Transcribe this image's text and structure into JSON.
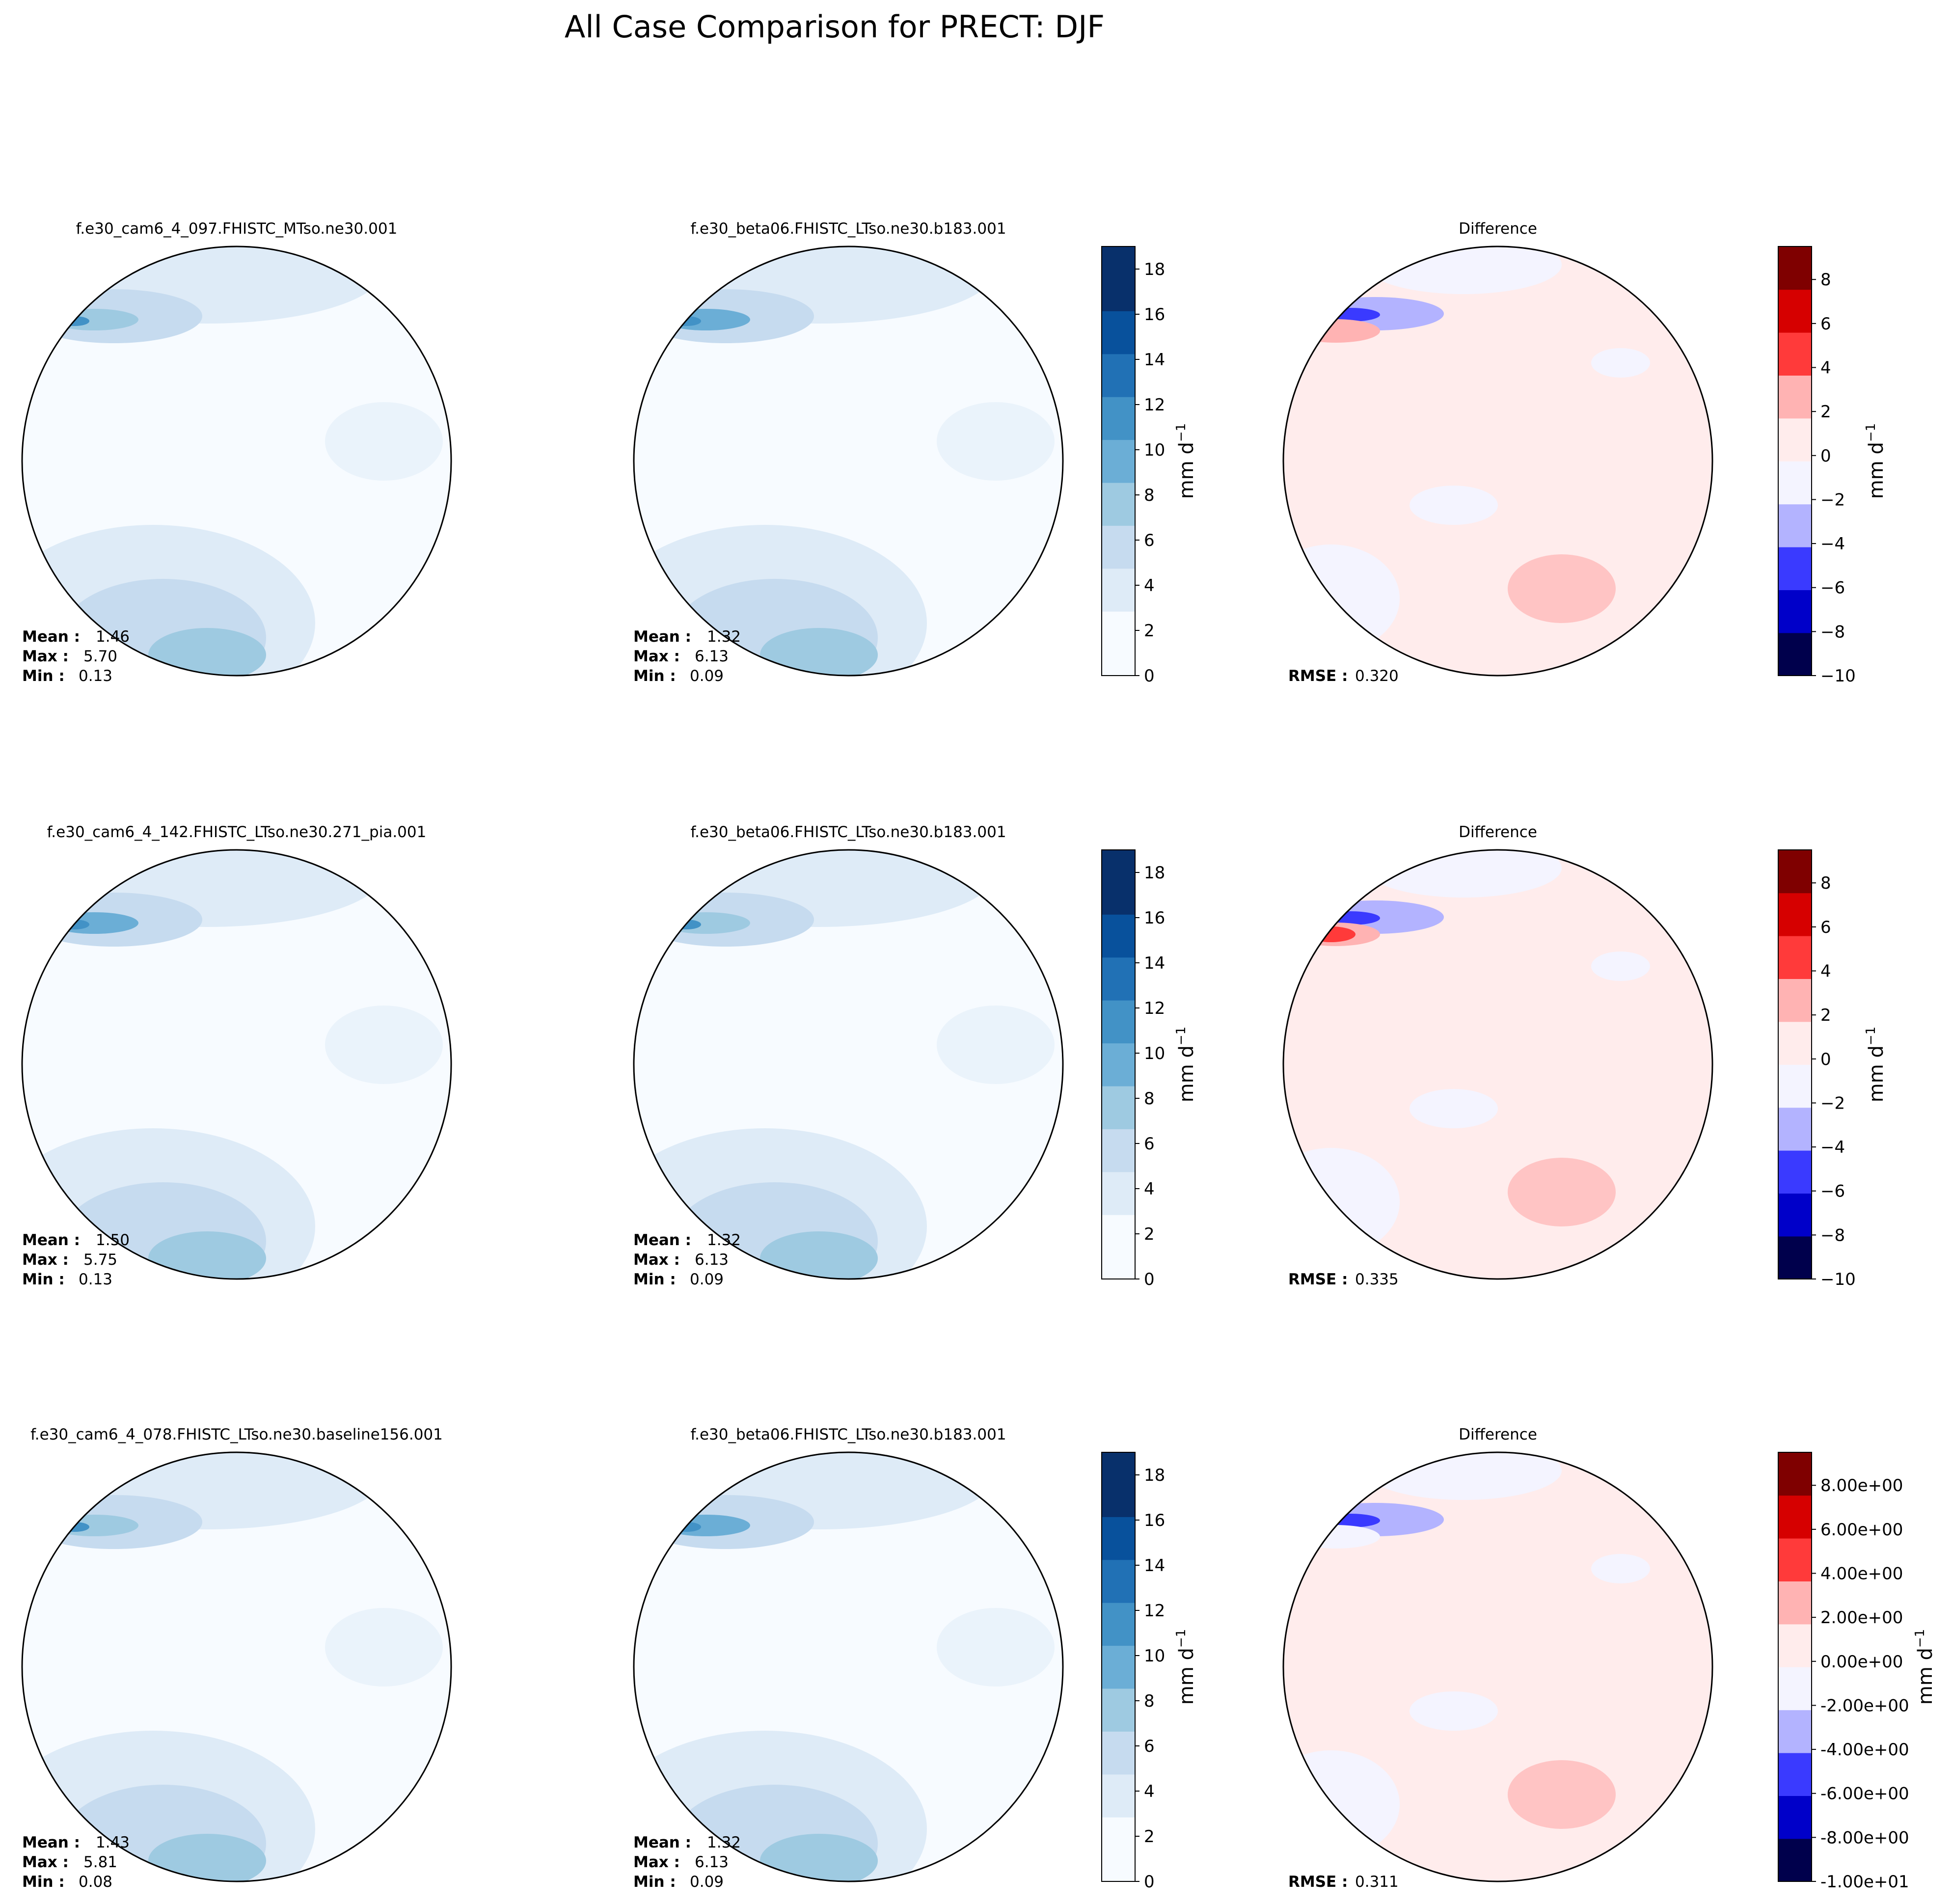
{
  "figure": {
    "title": "All Case Comparison for PRECT: DJF",
    "units_label": "mm d",
    "units_sup": "−1",
    "labels": {
      "mean": "Mean :",
      "max": "Max :",
      "min": "Min :",
      "rmse": "RMSE :"
    }
  },
  "colors": {
    "blues": [
      "#f7fbff",
      "#deebf7",
      "#c6dbef",
      "#9ecae1",
      "#6baed6",
      "#4292c6",
      "#2171b5",
      "#08519c",
      "#08306b"
    ],
    "diverging": [
      "#00004c",
      "#0000c9",
      "#3a3aff",
      "#b3b3ff",
      "#f4f4ff",
      "#ffecec",
      "#ffb3b3",
      "#ff3a3a",
      "#d60000",
      "#7f0000"
    ]
  },
  "rows": [
    {
      "test": {
        "title": "f.e30_cam6_4_097.FHISTC_MTso.ne30.001",
        "mean": "1.46",
        "max": "5.70",
        "min": "0.13"
      },
      "baseline": {
        "title": "f.e30_beta06.FHISTC_LTso.ne30.b183.001",
        "mean": "1.32",
        "max": "6.13",
        "min": "0.09"
      },
      "diff": {
        "title": "Difference",
        "rmse": "0.320"
      }
    },
    {
      "test": {
        "title": "f.e30_cam6_4_142.FHISTC_LTso.ne30.271_pia.001",
        "mean": "1.50",
        "max": "5.75",
        "min": "0.13"
      },
      "baseline": {
        "title": "f.e30_beta06.FHISTC_LTso.ne30.b183.001",
        "mean": "1.32",
        "max": "6.13",
        "min": "0.09"
      },
      "diff": {
        "title": "Difference",
        "rmse": "0.335"
      }
    },
    {
      "test": {
        "title": "f.e30_cam6_4_078.FHISTC_LTso.ne30.baseline156.001",
        "mean": "1.43",
        "max": "5.81",
        "min": "0.08"
      },
      "baseline": {
        "title": "f.e30_beta06.FHISTC_LTso.ne30.b183.001",
        "mean": "1.32",
        "max": "6.13",
        "min": "0.09"
      },
      "diff": {
        "title": "Difference",
        "rmse": "0.311"
      }
    }
  ],
  "chart_data": [
    {
      "type": "heatmap",
      "description_role": "precipitation maps (test and baseline), north polar stereographic",
      "variable": "PRECT",
      "season": "DJF",
      "colorbar": {
        "ticks": [
          "0",
          "2",
          "4",
          "6",
          "8",
          "10",
          "12",
          "14",
          "16",
          "18"
        ],
        "range": [
          0,
          19
        ],
        "levels": 20
      }
    },
    {
      "type": "heatmap",
      "description_role": "difference maps (rows 1-2)",
      "colorbar": {
        "ticks": [
          "−10",
          "−8",
          "−6",
          "−4",
          "−2",
          "0",
          "2",
          "4",
          "6",
          "8"
        ],
        "range": [
          -10,
          9.5
        ],
        "levels": 40
      }
    },
    {
      "type": "heatmap",
      "description_role": "difference map (row 3)",
      "colorbar": {
        "ticks": [
          "-1.00e+01",
          "-8.00e+00",
          "-6.00e+00",
          "-4.00e+00",
          "-2.00e+00",
          "0.00e+00",
          "2.00e+00",
          "4.00e+00",
          "6.00e+00",
          "8.00e+00"
        ],
        "range": [
          -10,
          9.5
        ],
        "levels": 40
      }
    }
  ]
}
